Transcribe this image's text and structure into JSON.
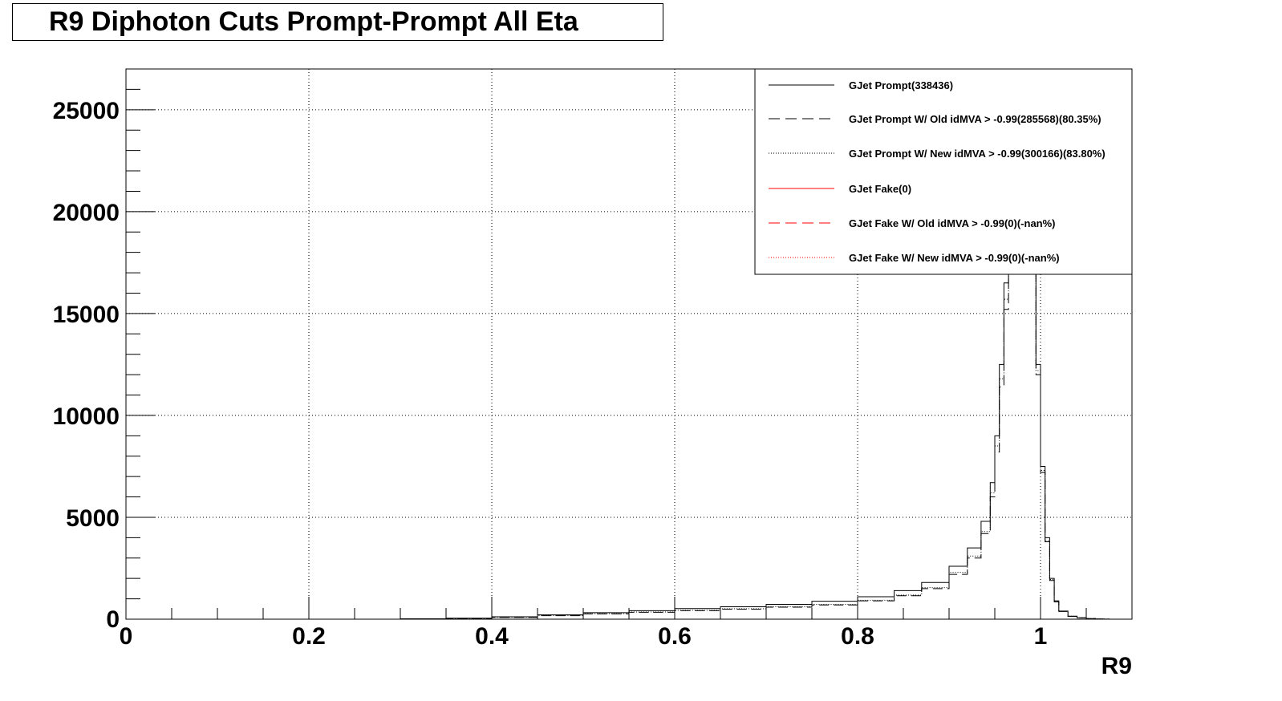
{
  "page": {
    "title": "R9 Diphoton Cuts Prompt-Prompt All Eta"
  },
  "chart_data": {
    "type": "line",
    "title": "R9 Diphoton Cuts Prompt-Prompt All Eta",
    "xlabel": "R9",
    "ylabel": "",
    "xlim": [
      0,
      1.1
    ],
    "ylim": [
      0,
      27000
    ],
    "x_ticks": [
      {
        "value": 0,
        "label": "0"
      },
      {
        "value": 0.2,
        "label": "0.2"
      },
      {
        "value": 0.4,
        "label": "0.4"
      },
      {
        "value": 0.6,
        "label": "0.6"
      },
      {
        "value": 0.8,
        "label": "0.8"
      },
      {
        "value": 1.0,
        "label": "1"
      }
    ],
    "y_ticks": [
      {
        "value": 0,
        "label": "0"
      },
      {
        "value": 5000,
        "label": "5000"
      },
      {
        "value": 10000,
        "label": "10000"
      },
      {
        "value": 15000,
        "label": "15000"
      },
      {
        "value": 20000,
        "label": "20000"
      },
      {
        "value": 25000,
        "label": "25000"
      }
    ],
    "grid": true,
    "legend_position": "top-right",
    "series": [
      {
        "name": "GJet Prompt(338436)",
        "color": "#000000",
        "line_style": "solid",
        "x": [
          0.3,
          0.35,
          0.4,
          0.45,
          0.5,
          0.55,
          0.6,
          0.65,
          0.7,
          0.75,
          0.8,
          0.84,
          0.87,
          0.9,
          0.92,
          0.935,
          0.945,
          0.95,
          0.955,
          0.96,
          0.965,
          0.97,
          0.975,
          0.98,
          0.985,
          0.99,
          0.995,
          1.0,
          1.005,
          1.01,
          1.015,
          1.02,
          1.03,
          1.04,
          1.05,
          1.06,
          1.07
        ],
        "y": [
          20,
          50,
          120,
          210,
          320,
          420,
          520,
          610,
          730,
          880,
          1100,
          1400,
          1800,
          2600,
          3500,
          4800,
          6700,
          9000,
          12500,
          16500,
          21000,
          24500,
          26000,
          25500,
          22500,
          18000,
          12500,
          7500,
          4000,
          2000,
          900,
          400,
          150,
          70,
          30,
          10,
          3
        ]
      },
      {
        "name": "GJet Prompt W/ Old idMVA > -0.99(285568)(80.35%)",
        "color": "#000000",
        "line_style": "dashed",
        "x": [
          0.3,
          0.35,
          0.4,
          0.45,
          0.5,
          0.55,
          0.6,
          0.65,
          0.7,
          0.75,
          0.8,
          0.84,
          0.87,
          0.9,
          0.92,
          0.935,
          0.945,
          0.95,
          0.955,
          0.96,
          0.965,
          0.97,
          0.975,
          0.98,
          0.985,
          0.99,
          0.995,
          1.0,
          1.005,
          1.01,
          1.015,
          1.02,
          1.03,
          1.04,
          1.05,
          1.06,
          1.07
        ],
        "y": [
          12,
          35,
          90,
          170,
          260,
          340,
          420,
          490,
          590,
          700,
          900,
          1150,
          1500,
          2200,
          3000,
          4200,
          6000,
          8200,
          11400,
          15200,
          19500,
          23000,
          24800,
          24500,
          21600,
          17200,
          12000,
          7200,
          3800,
          1900,
          850,
          380,
          140,
          65,
          28,
          9,
          3
        ]
      },
      {
        "name": "GJet Prompt W/ New idMVA > -0.99(300166)(83.80%)",
        "color": "#000000",
        "line_style": "dotted",
        "x": [
          0.3,
          0.35,
          0.4,
          0.45,
          0.5,
          0.55,
          0.6,
          0.65,
          0.7,
          0.75,
          0.8,
          0.84,
          0.87,
          0.9,
          0.92,
          0.935,
          0.945,
          0.95,
          0.955,
          0.96,
          0.965,
          0.97,
          0.975,
          0.98,
          0.985,
          0.99,
          0.995,
          1.0,
          1.005,
          1.01,
          1.015,
          1.02,
          1.03,
          1.04,
          1.05,
          1.06,
          1.07
        ],
        "y": [
          14,
          38,
          95,
          180,
          270,
          355,
          440,
          510,
          610,
          730,
          930,
          1180,
          1550,
          2300,
          3100,
          4300,
          6200,
          8500,
          11800,
          15700,
          20000,
          23600,
          25300,
          25000,
          22000,
          17500,
          12200,
          7300,
          3850,
          1950,
          870,
          390,
          145,
          67,
          29,
          9,
          3
        ]
      },
      {
        "name": "GJet Fake(0)",
        "color": "#ff0000",
        "line_style": "solid",
        "x": [],
        "y": []
      },
      {
        "name": "GJet Fake W/ Old idMVA > -0.99(0)(-nan%)",
        "color": "#ff0000",
        "line_style": "dashed",
        "x": [],
        "y": []
      },
      {
        "name": "GJet Fake W/ New idMVA > -0.99(0)(-nan%)",
        "color": "#ff0000",
        "line_style": "dotted",
        "x": [],
        "y": []
      }
    ]
  }
}
